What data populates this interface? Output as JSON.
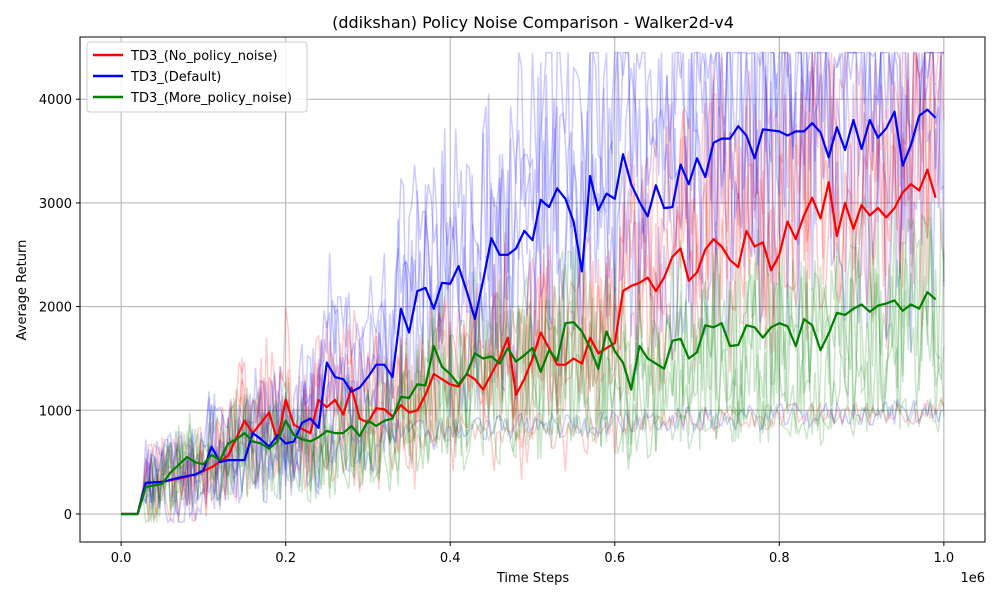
{
  "chart_data": {
    "type": "line",
    "title": "(ddikshan) Policy Noise Comparison - Walker2d-v4",
    "xlabel": "Time Steps",
    "ylabel": "Average Return",
    "x_offset_label": "1e6",
    "xlim": [
      -0.05,
      1.05
    ],
    "ylim": [
      -270,
      4600
    ],
    "x_ticks": [
      0.0,
      0.2,
      0.4,
      0.6,
      0.8,
      1.0
    ],
    "x_tick_labels": [
      "0.0",
      "0.2",
      "0.4",
      "0.6",
      "0.8",
      "1.0"
    ],
    "y_ticks": [
      0,
      1000,
      2000,
      3000,
      4000
    ],
    "y_tick_labels": [
      "0",
      "1000",
      "2000",
      "3000",
      "4000"
    ],
    "grid": true,
    "legend_position": "top-left",
    "series": [
      {
        "name": "TD3_(No_policy_noise)",
        "color": "#ff0000",
        "mean": [
          [
            0.0,
            0
          ],
          [
            0.02,
            0
          ],
          [
            0.03,
            300
          ],
          [
            0.05,
            310
          ],
          [
            0.07,
            340
          ],
          [
            0.09,
            380
          ],
          [
            0.11,
            450
          ],
          [
            0.13,
            560
          ],
          [
            0.15,
            900
          ],
          [
            0.16,
            780
          ],
          [
            0.18,
            980
          ],
          [
            0.19,
            700
          ],
          [
            0.2,
            1100
          ],
          [
            0.21,
            860
          ],
          [
            0.23,
            780
          ],
          [
            0.24,
            1100
          ],
          [
            0.25,
            1030
          ],
          [
            0.26,
            1100
          ],
          [
            0.27,
            960
          ],
          [
            0.28,
            1220
          ],
          [
            0.29,
            920
          ],
          [
            0.3,
            880
          ],
          [
            0.31,
            1020
          ],
          [
            0.32,
            1010
          ],
          [
            0.33,
            940
          ],
          [
            0.34,
            1050
          ],
          [
            0.35,
            980
          ],
          [
            0.36,
            1000
          ],
          [
            0.37,
            1150
          ],
          [
            0.38,
            1350
          ],
          [
            0.39,
            1300
          ],
          [
            0.4,
            1250
          ],
          [
            0.41,
            1230
          ],
          [
            0.42,
            1350
          ],
          [
            0.43,
            1300
          ],
          [
            0.44,
            1200
          ],
          [
            0.45,
            1350
          ],
          [
            0.46,
            1500
          ],
          [
            0.47,
            1700
          ],
          [
            0.48,
            1150
          ],
          [
            0.49,
            1300
          ],
          [
            0.5,
            1500
          ],
          [
            0.51,
            1750
          ],
          [
            0.52,
            1600
          ],
          [
            0.53,
            1440
          ],
          [
            0.54,
            1440
          ],
          [
            0.55,
            1500
          ],
          [
            0.56,
            1450
          ],
          [
            0.57,
            1700
          ],
          [
            0.58,
            1550
          ],
          [
            0.59,
            1600
          ],
          [
            0.6,
            1650
          ],
          [
            0.61,
            2150
          ],
          [
            0.62,
            2200
          ],
          [
            0.63,
            2230
          ],
          [
            0.64,
            2280
          ],
          [
            0.65,
            2150
          ],
          [
            0.66,
            2280
          ],
          [
            0.67,
            2480
          ],
          [
            0.68,
            2560
          ],
          [
            0.69,
            2250
          ],
          [
            0.7,
            2330
          ],
          [
            0.71,
            2550
          ],
          [
            0.72,
            2650
          ],
          [
            0.73,
            2580
          ],
          [
            0.74,
            2450
          ],
          [
            0.75,
            2380
          ],
          [
            0.76,
            2730
          ],
          [
            0.77,
            2580
          ],
          [
            0.78,
            2620
          ],
          [
            0.79,
            2350
          ],
          [
            0.8,
            2500
          ],
          [
            0.81,
            2820
          ],
          [
            0.82,
            2650
          ],
          [
            0.83,
            2880
          ],
          [
            0.84,
            3050
          ],
          [
            0.85,
            2850
          ],
          [
            0.86,
            3200
          ],
          [
            0.87,
            2680
          ],
          [
            0.88,
            3000
          ],
          [
            0.89,
            2750
          ],
          [
            0.9,
            2980
          ],
          [
            0.91,
            2880
          ],
          [
            0.92,
            2950
          ],
          [
            0.93,
            2860
          ],
          [
            0.94,
            2950
          ],
          [
            0.95,
            3100
          ],
          [
            0.96,
            3180
          ],
          [
            0.97,
            3120
          ],
          [
            0.98,
            3320
          ],
          [
            0.99,
            3050
          ]
        ]
      },
      {
        "name": "TD3_(Default)",
        "color": "#0000ff",
        "mean": [
          [
            0.0,
            0
          ],
          [
            0.02,
            0
          ],
          [
            0.03,
            300
          ],
          [
            0.05,
            310
          ],
          [
            0.07,
            350
          ],
          [
            0.09,
            380
          ],
          [
            0.1,
            420
          ],
          [
            0.11,
            650
          ],
          [
            0.12,
            500
          ],
          [
            0.13,
            520
          ],
          [
            0.15,
            520
          ],
          [
            0.16,
            780
          ],
          [
            0.17,
            720
          ],
          [
            0.18,
            650
          ],
          [
            0.19,
            760
          ],
          [
            0.2,
            680
          ],
          [
            0.21,
            700
          ],
          [
            0.22,
            880
          ],
          [
            0.23,
            920
          ],
          [
            0.24,
            830
          ],
          [
            0.25,
            1460
          ],
          [
            0.26,
            1320
          ],
          [
            0.27,
            1300
          ],
          [
            0.28,
            1180
          ],
          [
            0.29,
            1220
          ],
          [
            0.3,
            1320
          ],
          [
            0.31,
            1440
          ],
          [
            0.32,
            1440
          ],
          [
            0.33,
            1320
          ],
          [
            0.34,
            1980
          ],
          [
            0.35,
            1750
          ],
          [
            0.36,
            2150
          ],
          [
            0.37,
            2180
          ],
          [
            0.38,
            1980
          ],
          [
            0.39,
            2230
          ],
          [
            0.4,
            2220
          ],
          [
            0.41,
            2390
          ],
          [
            0.42,
            2150
          ],
          [
            0.43,
            1880
          ],
          [
            0.44,
            2250
          ],
          [
            0.45,
            2660
          ],
          [
            0.46,
            2500
          ],
          [
            0.47,
            2500
          ],
          [
            0.48,
            2560
          ],
          [
            0.49,
            2730
          ],
          [
            0.5,
            2640
          ],
          [
            0.51,
            3030
          ],
          [
            0.52,
            2960
          ],
          [
            0.53,
            3140
          ],
          [
            0.54,
            3040
          ],
          [
            0.55,
            2820
          ],
          [
            0.56,
            2340
          ],
          [
            0.57,
            3260
          ],
          [
            0.58,
            2930
          ],
          [
            0.59,
            3090
          ],
          [
            0.6,
            3040
          ],
          [
            0.61,
            3470
          ],
          [
            0.62,
            3180
          ],
          [
            0.63,
            3010
          ],
          [
            0.64,
            2870
          ],
          [
            0.65,
            3170
          ],
          [
            0.66,
            2950
          ],
          [
            0.67,
            2960
          ],
          [
            0.68,
            3370
          ],
          [
            0.69,
            3180
          ],
          [
            0.7,
            3430
          ],
          [
            0.71,
            3250
          ],
          [
            0.72,
            3580
          ],
          [
            0.73,
            3620
          ],
          [
            0.74,
            3620
          ],
          [
            0.75,
            3740
          ],
          [
            0.76,
            3650
          ],
          [
            0.77,
            3430
          ],
          [
            0.78,
            3710
          ],
          [
            0.79,
            3700
          ],
          [
            0.8,
            3690
          ],
          [
            0.81,
            3650
          ],
          [
            0.82,
            3690
          ],
          [
            0.83,
            3690
          ],
          [
            0.84,
            3770
          ],
          [
            0.85,
            3680
          ],
          [
            0.86,
            3440
          ],
          [
            0.87,
            3730
          ],
          [
            0.88,
            3510
          ],
          [
            0.89,
            3800
          ],
          [
            0.9,
            3520
          ],
          [
            0.91,
            3800
          ],
          [
            0.92,
            3630
          ],
          [
            0.93,
            3720
          ],
          [
            0.94,
            3880
          ],
          [
            0.95,
            3360
          ],
          [
            0.96,
            3560
          ],
          [
            0.97,
            3840
          ],
          [
            0.98,
            3900
          ],
          [
            0.99,
            3820
          ]
        ]
      },
      {
        "name": "TD3_(More_policy_noise)",
        "color": "#008000",
        "mean": [
          [
            0.0,
            0
          ],
          [
            0.02,
            0
          ],
          [
            0.03,
            260
          ],
          [
            0.05,
            290
          ],
          [
            0.06,
            400
          ],
          [
            0.08,
            550
          ],
          [
            0.09,
            500
          ],
          [
            0.1,
            480
          ],
          [
            0.11,
            570
          ],
          [
            0.12,
            520
          ],
          [
            0.13,
            680
          ],
          [
            0.14,
            720
          ],
          [
            0.15,
            780
          ],
          [
            0.16,
            700
          ],
          [
            0.17,
            680
          ],
          [
            0.18,
            630
          ],
          [
            0.19,
            700
          ],
          [
            0.2,
            900
          ],
          [
            0.21,
            760
          ],
          [
            0.22,
            720
          ],
          [
            0.23,
            700
          ],
          [
            0.24,
            740
          ],
          [
            0.25,
            800
          ],
          [
            0.26,
            780
          ],
          [
            0.27,
            780
          ],
          [
            0.28,
            850
          ],
          [
            0.29,
            750
          ],
          [
            0.3,
            900
          ],
          [
            0.31,
            850
          ],
          [
            0.32,
            900
          ],
          [
            0.33,
            920
          ],
          [
            0.34,
            1130
          ],
          [
            0.35,
            1120
          ],
          [
            0.36,
            1250
          ],
          [
            0.37,
            1240
          ],
          [
            0.38,
            1620
          ],
          [
            0.39,
            1420
          ],
          [
            0.4,
            1350
          ],
          [
            0.41,
            1250
          ],
          [
            0.42,
            1350
          ],
          [
            0.43,
            1550
          ],
          [
            0.44,
            1500
          ],
          [
            0.45,
            1520
          ],
          [
            0.46,
            1450
          ],
          [
            0.47,
            1600
          ],
          [
            0.48,
            1470
          ],
          [
            0.49,
            1530
          ],
          [
            0.5,
            1600
          ],
          [
            0.51,
            1370
          ],
          [
            0.52,
            1580
          ],
          [
            0.53,
            1480
          ],
          [
            0.54,
            1840
          ],
          [
            0.55,
            1850
          ],
          [
            0.56,
            1760
          ],
          [
            0.57,
            1600
          ],
          [
            0.58,
            1400
          ],
          [
            0.59,
            1760
          ],
          [
            0.6,
            1570
          ],
          [
            0.61,
            1460
          ],
          [
            0.62,
            1200
          ],
          [
            0.63,
            1620
          ],
          [
            0.64,
            1500
          ],
          [
            0.65,
            1450
          ],
          [
            0.66,
            1400
          ],
          [
            0.67,
            1670
          ],
          [
            0.68,
            1690
          ],
          [
            0.69,
            1500
          ],
          [
            0.7,
            1560
          ],
          [
            0.71,
            1820
          ],
          [
            0.72,
            1800
          ],
          [
            0.73,
            1840
          ],
          [
            0.74,
            1620
          ],
          [
            0.75,
            1630
          ],
          [
            0.76,
            1820
          ],
          [
            0.77,
            1800
          ],
          [
            0.78,
            1700
          ],
          [
            0.79,
            1800
          ],
          [
            0.8,
            1840
          ],
          [
            0.81,
            1810
          ],
          [
            0.82,
            1620
          ],
          [
            0.83,
            1880
          ],
          [
            0.84,
            1820
          ],
          [
            0.85,
            1580
          ],
          [
            0.86,
            1740
          ],
          [
            0.87,
            1940
          ],
          [
            0.88,
            1920
          ],
          [
            0.89,
            1980
          ],
          [
            0.9,
            2020
          ],
          [
            0.91,
            1950
          ],
          [
            0.92,
            2010
          ],
          [
            0.93,
            2030
          ],
          [
            0.94,
            2060
          ],
          [
            0.95,
            1960
          ],
          [
            0.96,
            2020
          ],
          [
            0.97,
            1980
          ],
          [
            0.98,
            2140
          ],
          [
            0.99,
            2070
          ]
        ]
      }
    ]
  }
}
